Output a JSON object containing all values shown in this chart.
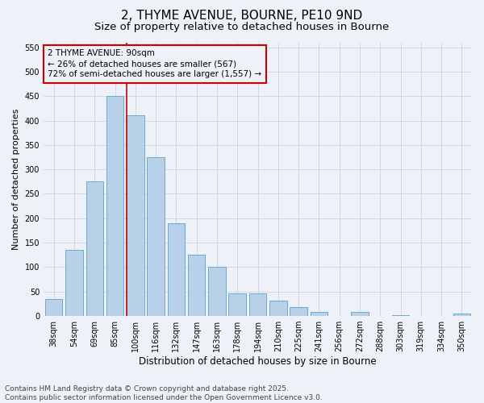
{
  "title1": "2, THYME AVENUE, BOURNE, PE10 9ND",
  "title2": "Size of property relative to detached houses in Bourne",
  "xlabel": "Distribution of detached houses by size in Bourne",
  "ylabel": "Number of detached properties",
  "categories": [
    "38sqm",
    "54sqm",
    "69sqm",
    "85sqm",
    "100sqm",
    "116sqm",
    "132sqm",
    "147sqm",
    "163sqm",
    "178sqm",
    "194sqm",
    "210sqm",
    "225sqm",
    "241sqm",
    "256sqm",
    "272sqm",
    "288sqm",
    "303sqm",
    "319sqm",
    "334sqm",
    "350sqm"
  ],
  "values": [
    35,
    136,
    276,
    451,
    410,
    325,
    190,
    125,
    101,
    46,
    46,
    31,
    18,
    8,
    0,
    9,
    0,
    2,
    0,
    0,
    5
  ],
  "bar_color": "#b8d0e8",
  "bar_edge_color": "#6aaad4",
  "grid_color": "#c8d4e4",
  "background_color": "#eef2f8",
  "vline_color": "#cc0000",
  "annotation_text": "2 THYME AVENUE: 90sqm\n← 26% of detached houses are smaller (567)\n72% of semi-detached houses are larger (1,557) →",
  "annotation_box_color": "#cc0000",
  "ylim": [
    0,
    560
  ],
  "yticks": [
    0,
    50,
    100,
    150,
    200,
    250,
    300,
    350,
    400,
    450,
    500,
    550
  ],
  "footer_text": "Contains HM Land Registry data © Crown copyright and database right 2025.\nContains public sector information licensed under the Open Government Licence v3.0.",
  "title1_fontsize": 11,
  "title2_fontsize": 9.5,
  "xlabel_fontsize": 8.5,
  "ylabel_fontsize": 8,
  "tick_fontsize": 7,
  "annotation_fontsize": 7.5,
  "footer_fontsize": 6.5
}
